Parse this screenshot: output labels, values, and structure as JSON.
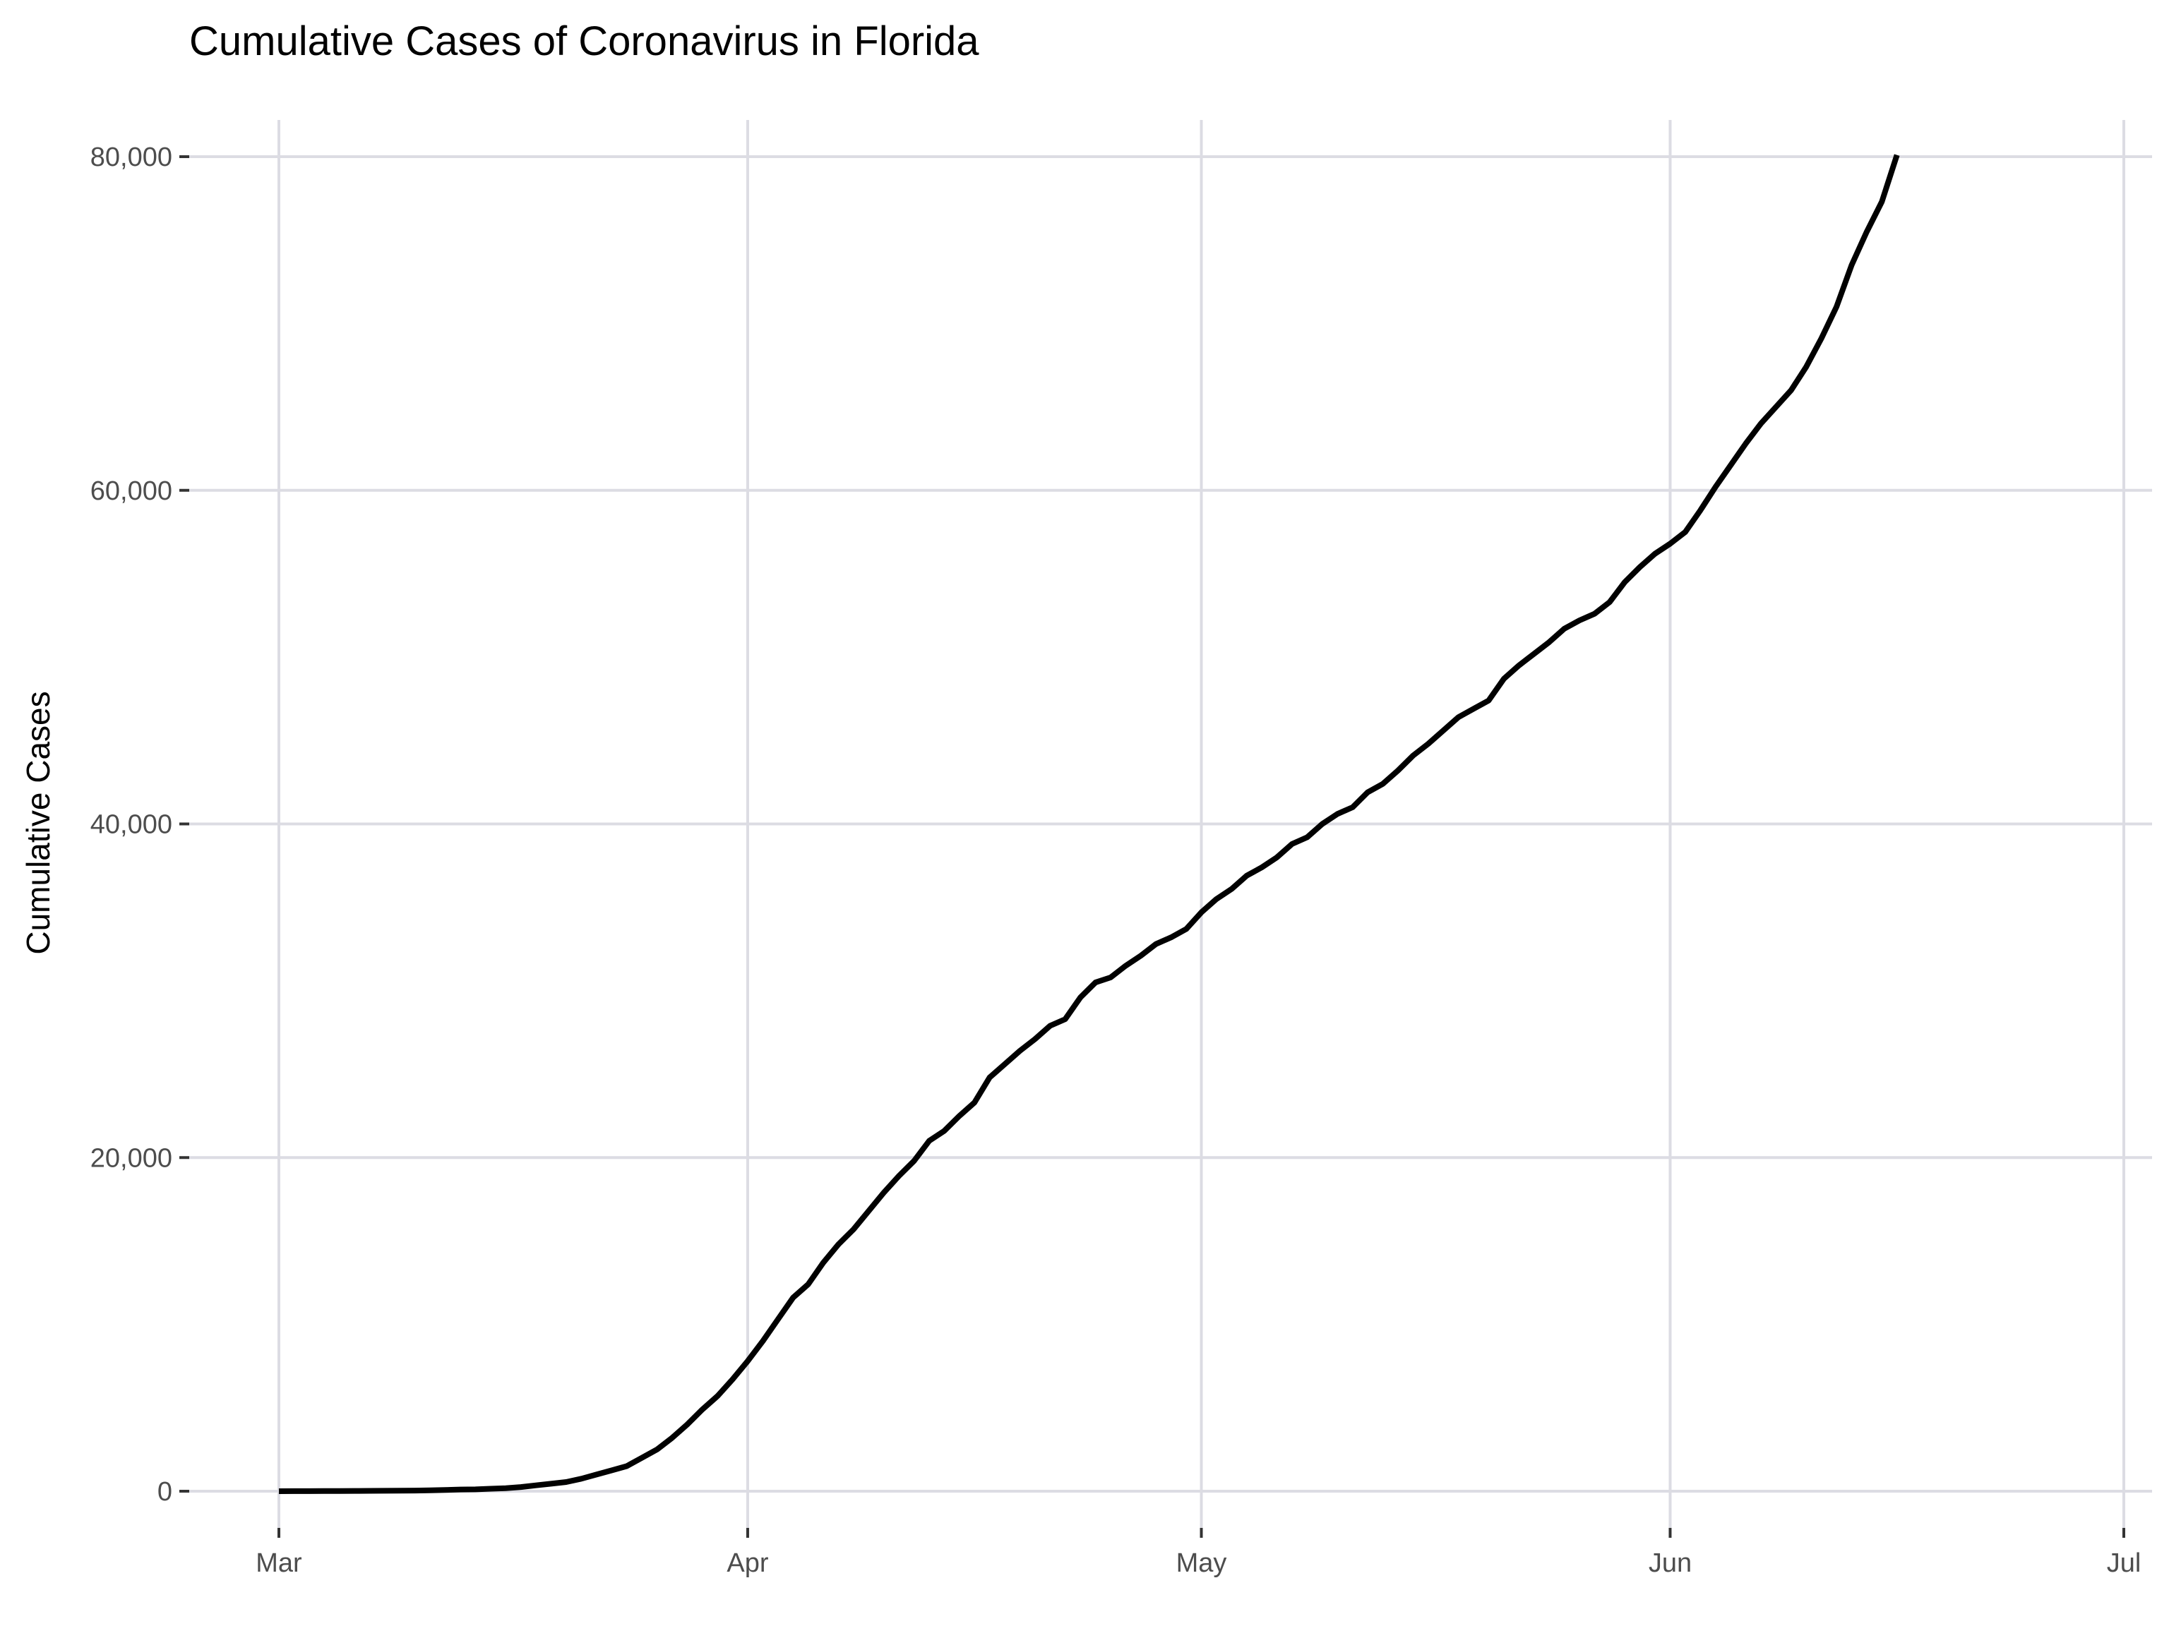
{
  "chart_data": {
    "type": "line",
    "title": "Cumulative Cases of Coronavirus in Florida",
    "xlabel": "",
    "ylabel": "Cumulative Cases",
    "x_axis": {
      "kind": "date",
      "range": [
        "2020-02-29",
        "2020-07-01"
      ],
      "ticks": [
        {
          "value": "2020-03-01",
          "label": "Mar"
        },
        {
          "value": "2020-04-01",
          "label": "Apr"
        },
        {
          "value": "2020-05-01",
          "label": "May"
        },
        {
          "value": "2020-06-01",
          "label": "Jun"
        },
        {
          "value": "2020-07-01",
          "label": "Jul"
        }
      ]
    },
    "y_axis": {
      "range": [
        0,
        80000
      ],
      "ticks": [
        {
          "value": 0,
          "label": "0"
        },
        {
          "value": 20000,
          "label": "20,000"
        },
        {
          "value": 40000,
          "label": "40,000"
        },
        {
          "value": 60000,
          "label": "60,000"
        },
        {
          "value": 80000,
          "label": "80,000"
        }
      ]
    },
    "grid": true,
    "legend": "none",
    "line_color": "#000000",
    "series": [
      {
        "points": [
          [
            "2020-03-01",
            2
          ],
          [
            "2020-03-02",
            3
          ],
          [
            "2020-03-03",
            5
          ],
          [
            "2020-03-04",
            8
          ],
          [
            "2020-03-05",
            10
          ],
          [
            "2020-03-06",
            15
          ],
          [
            "2020-03-07",
            20
          ],
          [
            "2020-03-08",
            25
          ],
          [
            "2020-03-09",
            30
          ],
          [
            "2020-03-10",
            40
          ],
          [
            "2020-03-11",
            50
          ],
          [
            "2020-03-12",
            70
          ],
          [
            "2020-03-13",
            100
          ],
          [
            "2020-03-14",
            110
          ],
          [
            "2020-03-15",
            150
          ],
          [
            "2020-03-16",
            180
          ],
          [
            "2020-03-17",
            250
          ],
          [
            "2020-03-18",
            350
          ],
          [
            "2020-03-19",
            450
          ],
          [
            "2020-03-20",
            550
          ],
          [
            "2020-03-21",
            750
          ],
          [
            "2020-03-22",
            1000
          ],
          [
            "2020-03-23",
            1250
          ],
          [
            "2020-03-24",
            1500
          ],
          [
            "2020-03-25",
            2000
          ],
          [
            "2020-03-26",
            2500
          ],
          [
            "2020-03-27",
            3200
          ],
          [
            "2020-03-28",
            4000
          ],
          [
            "2020-03-29",
            4900
          ],
          [
            "2020-03-30",
            5700
          ],
          [
            "2020-03-31",
            6700
          ],
          [
            "2020-04-01",
            7800
          ],
          [
            "2020-04-02",
            9000
          ],
          [
            "2020-04-03",
            10300
          ],
          [
            "2020-04-04",
            11600
          ],
          [
            "2020-04-05",
            12400
          ],
          [
            "2020-04-06",
            13700
          ],
          [
            "2020-04-07",
            14800
          ],
          [
            "2020-04-08",
            15700
          ],
          [
            "2020-04-09",
            16800
          ],
          [
            "2020-04-10",
            17900
          ],
          [
            "2020-04-11",
            18900
          ],
          [
            "2020-04-12",
            19800
          ],
          [
            "2020-04-13",
            21000
          ],
          [
            "2020-04-14",
            21600
          ],
          [
            "2020-04-15",
            22500
          ],
          [
            "2020-04-16",
            23300
          ],
          [
            "2020-04-17",
            24800
          ],
          [
            "2020-04-18",
            25600
          ],
          [
            "2020-04-19",
            26400
          ],
          [
            "2020-04-20",
            27100
          ],
          [
            "2020-04-21",
            27900
          ],
          [
            "2020-04-22",
            28300
          ],
          [
            "2020-04-23",
            29600
          ],
          [
            "2020-04-24",
            30500
          ],
          [
            "2020-04-25",
            30800
          ],
          [
            "2020-04-26",
            31500
          ],
          [
            "2020-04-27",
            32100
          ],
          [
            "2020-04-28",
            32800
          ],
          [
            "2020-04-29",
            33200
          ],
          [
            "2020-04-30",
            33700
          ],
          [
            "2020-05-01",
            34700
          ],
          [
            "2020-05-02",
            35500
          ],
          [
            "2020-05-03",
            36100
          ],
          [
            "2020-05-04",
            36900
          ],
          [
            "2020-05-05",
            37400
          ],
          [
            "2020-05-06",
            38000
          ],
          [
            "2020-05-07",
            38800
          ],
          [
            "2020-05-08",
            39200
          ],
          [
            "2020-05-09",
            40000
          ],
          [
            "2020-05-10",
            40600
          ],
          [
            "2020-05-11",
            41000
          ],
          [
            "2020-05-12",
            41900
          ],
          [
            "2020-05-13",
            42400
          ],
          [
            "2020-05-14",
            43200
          ],
          [
            "2020-05-15",
            44100
          ],
          [
            "2020-05-16",
            44800
          ],
          [
            "2020-05-17",
            45600
          ],
          [
            "2020-05-18",
            46400
          ],
          [
            "2020-05-19",
            46900
          ],
          [
            "2020-05-20",
            47400
          ],
          [
            "2020-05-21",
            48700
          ],
          [
            "2020-05-22",
            49500
          ],
          [
            "2020-05-23",
            50200
          ],
          [
            "2020-05-24",
            50900
          ],
          [
            "2020-05-25",
            51700
          ],
          [
            "2020-05-26",
            52200
          ],
          [
            "2020-05-27",
            52600
          ],
          [
            "2020-05-28",
            53300
          ],
          [
            "2020-05-29",
            54500
          ],
          [
            "2020-05-30",
            55400
          ],
          [
            "2020-05-31",
            56200
          ],
          [
            "2020-06-01",
            56800
          ],
          [
            "2020-06-02",
            57500
          ],
          [
            "2020-06-03",
            58800
          ],
          [
            "2020-06-04",
            60200
          ],
          [
            "2020-06-05",
            61500
          ],
          [
            "2020-06-06",
            62800
          ],
          [
            "2020-06-07",
            64000
          ],
          [
            "2020-06-08",
            65000
          ],
          [
            "2020-06-09",
            66000
          ],
          [
            "2020-06-10",
            67400
          ],
          [
            "2020-06-11",
            69100
          ],
          [
            "2020-06-12",
            71000
          ],
          [
            "2020-06-13",
            73500
          ],
          [
            "2020-06-14",
            75500
          ],
          [
            "2020-06-15",
            77300
          ],
          [
            "2020-06-16",
            80100
          ]
        ]
      }
    ]
  }
}
